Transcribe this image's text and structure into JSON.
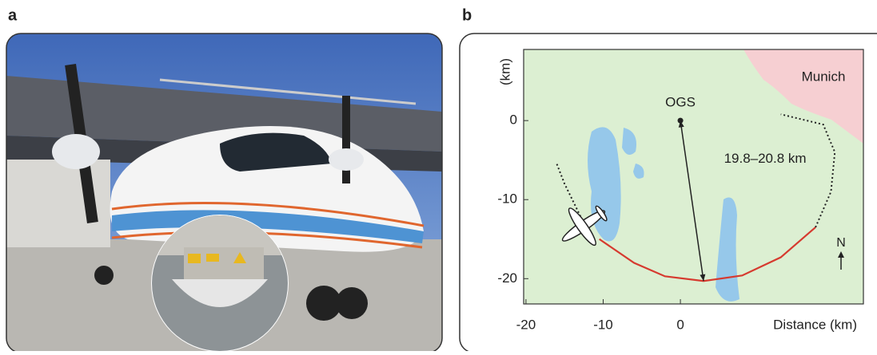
{
  "figure": {
    "panel_labels": [
      "a",
      "b"
    ]
  },
  "chart_data": {
    "type": "map",
    "xlabel": "Distance (km)",
    "ylabel": "(km)",
    "xlim": [
      -20.3,
      23.7
    ],
    "ylim": [
      -23.2,
      9
    ],
    "xticks": [
      -20,
      -10,
      0
    ],
    "yticks": [
      0,
      -10,
      -20
    ],
    "background_color": "#dcefd2",
    "points": [
      {
        "label": "OGS",
        "x": 0,
        "y": 0,
        "color": "#222"
      }
    ],
    "link": {
      "label": "19.8–20.8 km",
      "x": [
        0,
        3
      ],
      "y": [
        0,
        -20.3
      ],
      "color": "#222"
    },
    "place_labels": [
      "Munich"
    ],
    "north_label": "N",
    "tracks": [
      {
        "style": "dotted",
        "color": "#222",
        "x": [
          -16,
          -15,
          -13.5,
          -12.5
        ],
        "y": [
          -5.5,
          -8,
          -11,
          -13
        ]
      },
      {
        "style": "solid",
        "color": "#d63a2f",
        "x": [
          -10.5,
          -6,
          -2,
          3,
          8,
          13,
          17.5
        ],
        "y": [
          -15,
          -18,
          -19.7,
          -20.3,
          -19.6,
          -17.3,
          -13.5
        ]
      },
      {
        "style": "dotted",
        "color": "#222",
        "x": [
          17.5,
          19.5,
          20,
          18.5,
          13
        ],
        "y": [
          -13.5,
          -9,
          -4,
          -0.5,
          0.8
        ]
      }
    ]
  }
}
